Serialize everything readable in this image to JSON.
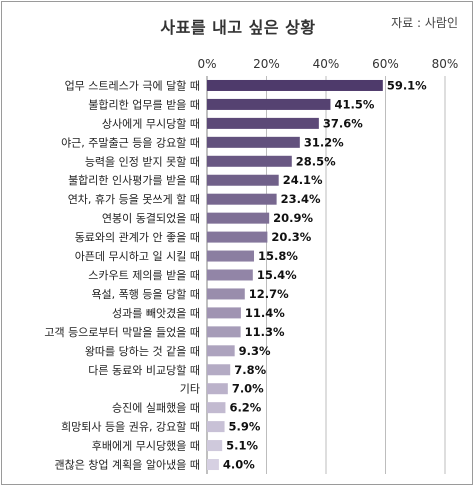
{
  "chart_data": {
    "type": "bar",
    "orientation": "horizontal",
    "title": "사표를 내고 싶은 상황",
    "source": "자료 : 사람인",
    "xlim": [
      0,
      80
    ],
    "xticks": [
      "0%",
      "20%",
      "40%",
      "60%",
      "80%"
    ],
    "xtick_values": [
      0,
      20,
      40,
      60,
      80
    ],
    "grid": true,
    "categories": [
      "업무 스트레스가 극에 달할 때",
      "불합리한 업무를 받을 때",
      "상사에게 무시당할 때",
      "야근, 주말출근 등을 강요할 때",
      "능력을 인정 받지 못할 때",
      "불합리한 인사평가를 받을 때",
      "연차, 휴가 등을 못쓰게 할 때",
      "연봉이 동결되었을 때",
      "동료와의 관계가 안 좋을 때",
      "아픈데 무시하고 일 시킬 때",
      "스카우트 제의를 받을 때",
      "욕설, 폭행 등을 당할 때",
      "성과를 빼앗겼을 때",
      "고객 등으로부터 막말을 들었을 때",
      "왕따를 당하는 것 같을 때",
      "다른 동료와 비교당할 때",
      "기타",
      "승진에 실패했을 때",
      "희망퇴사 등을 권유, 강요할 때",
      "후배에게 무시당했을 때",
      "괜찮은 창업 계획을 알아냈을 때"
    ],
    "values": [
      59.1,
      41.5,
      37.6,
      31.2,
      28.5,
      24.1,
      23.4,
      20.9,
      20.3,
      15.8,
      15.4,
      12.7,
      11.4,
      11.3,
      9.3,
      7.8,
      7.0,
      6.2,
      5.9,
      5.1,
      4.0
    ],
    "value_labels": [
      "59.1%",
      "41.5%",
      "37.6%",
      "31.2%",
      "28.5%",
      "24.1%",
      "23.4%",
      "20.9%",
      "20.3%",
      "15.8%",
      "15.4%",
      "12.7%",
      "11.4%",
      "11.3%",
      "9.3%",
      "7.8%",
      "7.0%",
      "6.2%",
      "5.9%",
      "5.1%",
      "4.0%"
    ],
    "colors": {
      "gradient_start": "#4e3a6b",
      "gradient_end": "#d6d0e2",
      "grid": "#bdbdbd",
      "axis": "#808080"
    }
  }
}
